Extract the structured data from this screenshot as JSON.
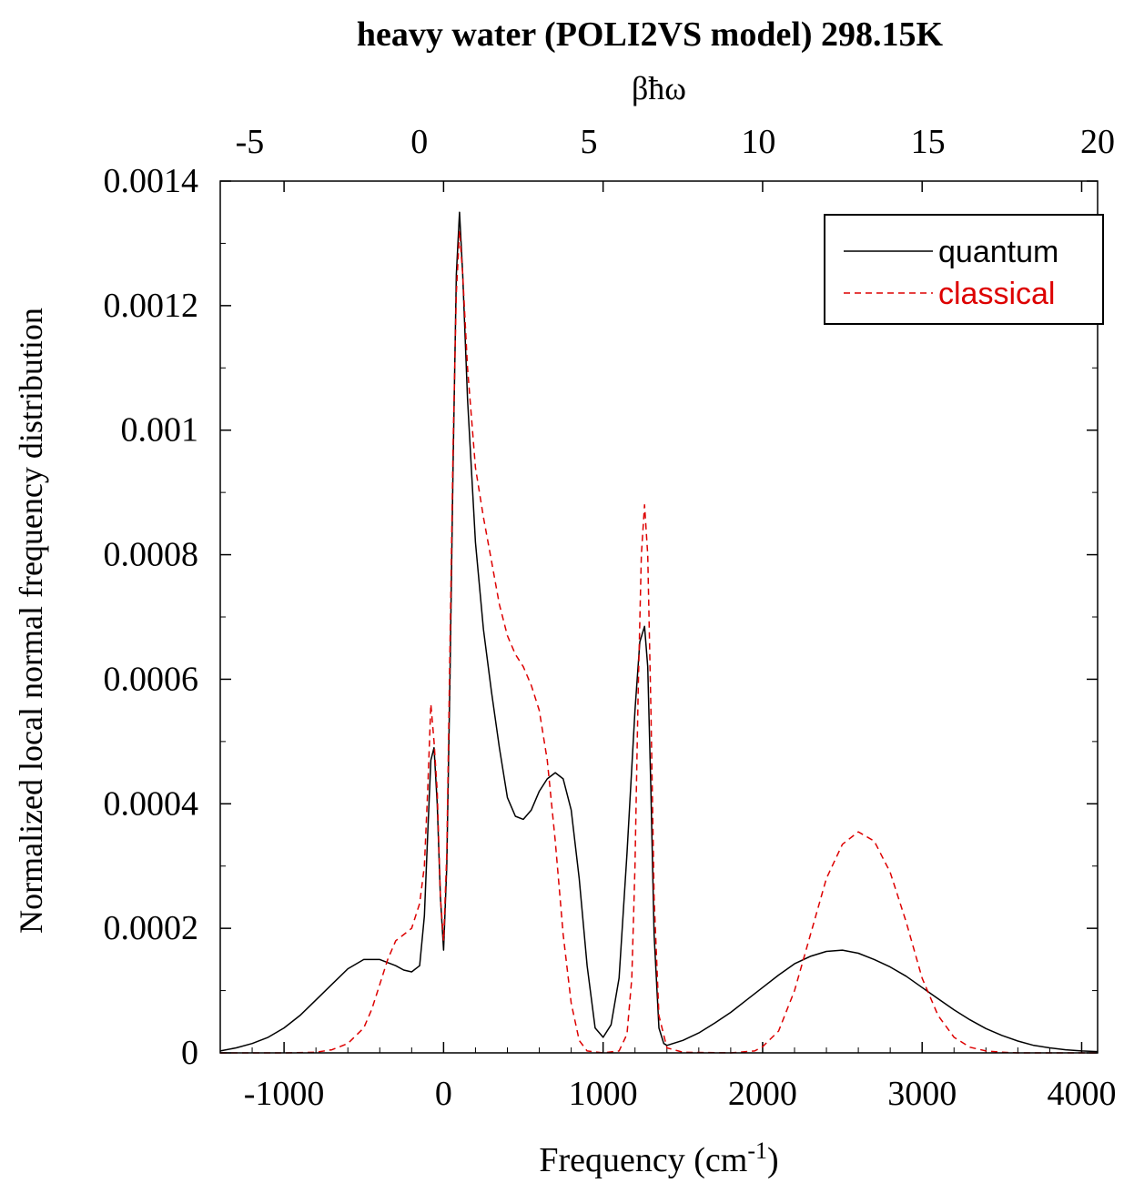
{
  "chart_data": {
    "type": "line",
    "title": "heavy water (POLI2VS model) 298.15K",
    "xlabel": "Frequency (cm",
    "xlabel_sup": "-1",
    "xlabel_close": ")",
    "ylabel": "Normalized local normal frequency distribution",
    "top_axis_label": "βħω",
    "xlim": [
      -1400,
      4100
    ],
    "ylim": [
      0,
      0.0014
    ],
    "top_axis_lim": [
      -5.87,
      20.0
    ],
    "x_ticks": [
      "-1000",
      "0",
      "1000",
      "2000",
      "3000",
      "4000"
    ],
    "x_tick_values": [
      -1000,
      0,
      1000,
      2000,
      3000,
      4000
    ],
    "y_ticks": [
      "0",
      "0.0002",
      "0.0004",
      "0.0006",
      "0.0008",
      "0.001",
      "0.0012",
      "0.0014"
    ],
    "y_tick_values": [
      0,
      0.0002,
      0.0004,
      0.0006,
      0.0008,
      0.001,
      0.0012,
      0.0014
    ],
    "top_ticks": [
      "-5",
      "0",
      "5",
      "10",
      "15",
      "20"
    ],
    "top_tick_values": [
      -5,
      0,
      5,
      10,
      15,
      20
    ],
    "grid": false,
    "legend_position": "top-right",
    "series": [
      {
        "name": "quantum",
        "color": "#000000",
        "dash": "solid",
        "x": [
          -1400,
          -1300,
          -1200,
          -1100,
          -1000,
          -900,
          -800,
          -700,
          -600,
          -500,
          -400,
          -300,
          -250,
          -200,
          -150,
          -120,
          -100,
          -80,
          -60,
          -40,
          -20,
          0,
          20,
          40,
          60,
          80,
          100,
          120,
          150,
          200,
          250,
          300,
          350,
          400,
          450,
          500,
          550,
          600,
          650,
          700,
          750,
          800,
          850,
          900,
          950,
          1000,
          1050,
          1100,
          1150,
          1200,
          1230,
          1260,
          1280,
          1300,
          1320,
          1350,
          1380,
          1400,
          1500,
          1600,
          1700,
          1800,
          1900,
          2000,
          2100,
          2200,
          2300,
          2400,
          2500,
          2600,
          2700,
          2800,
          2900,
          3000,
          3100,
          3200,
          3300,
          3400,
          3500,
          3600,
          3700,
          3800,
          3900,
          4000,
          4100
        ],
        "y": [
          3e-06,
          8e-06,
          1.5e-05,
          2.5e-05,
          4e-05,
          6e-05,
          8.5e-05,
          0.00011,
          0.000135,
          0.00015,
          0.00015,
          0.00014,
          0.000133,
          0.00013,
          0.00014,
          0.00022,
          0.00035,
          0.00047,
          0.00049,
          0.0004,
          0.00025,
          0.000165,
          0.0003,
          0.0006,
          0.00095,
          0.00125,
          0.00135,
          0.00125,
          0.00105,
          0.00082,
          0.00068,
          0.00058,
          0.00049,
          0.00041,
          0.00038,
          0.000375,
          0.00039,
          0.00042,
          0.00044,
          0.00045,
          0.00044,
          0.00039,
          0.00028,
          0.00014,
          4e-05,
          2.5e-05,
          4.5e-05,
          0.00012,
          0.00032,
          0.00055,
          0.00066,
          0.000685,
          0.00062,
          0.00042,
          0.00019,
          4e-05,
          1.5e-05,
          1.2e-05,
          2e-05,
          3.2e-05,
          4.8e-05,
          6.5e-05,
          8.5e-05,
          0.000105,
          0.000125,
          0.000143,
          0.000155,
          0.000163,
          0.000165,
          0.00016,
          0.00015,
          0.000138,
          0.000123,
          0.000105,
          8.7e-05,
          6.9e-05,
          5.3e-05,
          3.9e-05,
          2.8e-05,
          1.9e-05,
          1.2e-05,
          8e-06,
          5e-06,
          3e-06,
          2e-06
        ]
      },
      {
        "name": "classical",
        "color": "#dd0000",
        "dash": "dashed",
        "x": [
          -1400,
          -1000,
          -800,
          -700,
          -600,
          -500,
          -450,
          -400,
          -350,
          -300,
          -250,
          -200,
          -150,
          -120,
          -100,
          -80,
          -60,
          -40,
          -20,
          0,
          20,
          40,
          60,
          80,
          100,
          120,
          150,
          200,
          250,
          300,
          350,
          400,
          450,
          500,
          550,
          600,
          650,
          700,
          750,
          800,
          850,
          900,
          1000,
          1100,
          1150,
          1180,
          1200,
          1220,
          1240,
          1260,
          1280,
          1300,
          1320,
          1350,
          1400,
          1500,
          1800,
          1950,
          2000,
          2100,
          2200,
          2300,
          2400,
          2500,
          2600,
          2700,
          2800,
          2900,
          3000,
          3100,
          3200,
          3300,
          3400,
          3500,
          3600,
          3800,
          4100
        ],
        "y": [
          0,
          0,
          1e-06,
          5e-06,
          1.5e-05,
          4e-05,
          7e-05,
          0.00011,
          0.00015,
          0.00018,
          0.00019,
          0.0002,
          0.00024,
          0.0003,
          0.00042,
          0.00056,
          0.0005,
          0.00042,
          0.00025,
          0.00018,
          0.00032,
          0.00065,
          0.00098,
          0.00122,
          0.00132,
          0.00125,
          0.0011,
          0.00094,
          0.00086,
          0.00079,
          0.00072,
          0.00067,
          0.00064,
          0.00062,
          0.00059,
          0.00055,
          0.00047,
          0.00034,
          0.00019,
          8e-05,
          2e-05,
          3e-06,
          0,
          3e-06,
          3e-05,
          0.00012,
          0.0003,
          0.00058,
          0.0008,
          0.00088,
          0.0008,
          0.00055,
          0.00025,
          6e-05,
          8e-06,
          1e-06,
          0,
          3e-06,
          1e-05,
          3.5e-05,
          0.0001,
          0.00019,
          0.00028,
          0.000335,
          0.000355,
          0.00034,
          0.00029,
          0.00021,
          0.00012,
          6e-05,
          2.5e-05,
          9e-06,
          3e-06,
          1e-06,
          0,
          0,
          0
        ]
      }
    ]
  }
}
